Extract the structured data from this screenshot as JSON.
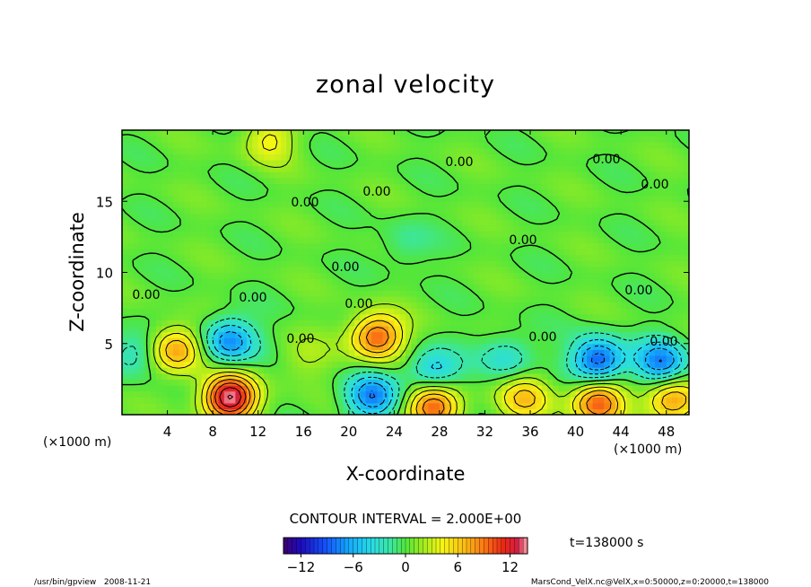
{
  "chart_data": {
    "type": "heatmap",
    "title": "zonal velocity",
    "xlabel": "X-coordinate",
    "ylabel": "Z-coordinate",
    "x_unit_left": "(×1000 m)",
    "x_unit_right": "(×1000 m)",
    "xlim": [
      0,
      50
    ],
    "ylim": [
      0,
      20
    ],
    "x_ticks": [
      "4",
      "8",
      "12",
      "16",
      "20",
      "24",
      "28",
      "32",
      "36",
      "40",
      "44",
      "48"
    ],
    "x_tick_values": [
      4,
      8,
      12,
      16,
      20,
      24,
      28,
      32,
      36,
      40,
      44,
      48
    ],
    "y_ticks": [
      "5",
      "10",
      "15"
    ],
    "y_tick_values": [
      5,
      10,
      15
    ],
    "contour_interval_text": "CONTOUR INTERVAL = 2.000E+00",
    "time_text": "t=138000 s",
    "colorbar": {
      "min": -14,
      "max": 14,
      "ticks": [
        "−12",
        "−6",
        "0",
        "6",
        "12"
      ],
      "tick_values": [
        -12,
        -6,
        0,
        6,
        12
      ]
    },
    "contour_labels": [
      "0.00",
      "0.00",
      "0.00",
      "0.00",
      "0.00",
      "0.00",
      "0.00",
      "0.00",
      "0.00",
      "0.00",
      "0.00",
      "0.00",
      "0.00",
      "0.00"
    ],
    "features": [
      {
        "x": 9.5,
        "z": 1.2,
        "value": 14,
        "kind": "max"
      },
      {
        "x": 9.5,
        "z": 5.2,
        "value": -8,
        "kind": "min"
      },
      {
        "x": 22.5,
        "z": 5.5,
        "value": 10,
        "kind": "max"
      },
      {
        "x": 22,
        "z": 1.3,
        "value": -8,
        "kind": "min"
      },
      {
        "x": 27.5,
        "z": 3.0,
        "value": -6,
        "kind": "min"
      },
      {
        "x": 27.5,
        "z": 0.7,
        "value": 10,
        "kind": "max"
      },
      {
        "x": 42,
        "z": 3.8,
        "value": -10,
        "kind": "min"
      },
      {
        "x": 42,
        "z": 0.9,
        "value": 10,
        "kind": "max"
      },
      {
        "x": 47.5,
        "z": 3.7,
        "value": -8,
        "kind": "min"
      },
      {
        "x": 48.5,
        "z": 1.0,
        "value": 8,
        "kind": "max"
      },
      {
        "x": 4.8,
        "z": 4.6,
        "value": 8,
        "kind": "max"
      },
      {
        "x": 34,
        "z": 4.0,
        "value": -4,
        "kind": "min"
      },
      {
        "x": 35.5,
        "z": 1.2,
        "value": 6,
        "kind": "max"
      },
      {
        "x": 1.2,
        "z": 4.4,
        "value": -4,
        "kind": "min"
      },
      {
        "x": 16,
        "z": 4.0,
        "value": 2,
        "kind": "max"
      },
      {
        "x": 25,
        "z": 12,
        "value": -2,
        "kind": "min"
      },
      {
        "x": 13,
        "z": 19.3,
        "value": 4,
        "kind": "max"
      }
    ]
  },
  "footer": {
    "left": "/usr/bin/gpview   2008-11-21",
    "right": "MarsCond_VelX.nc@VelX,x=0:50000,z=0:20000,t=138000"
  }
}
